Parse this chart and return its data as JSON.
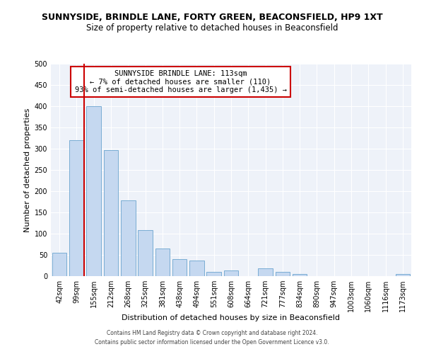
{
  "title": "SUNNYSIDE, BRINDLE LANE, FORTY GREEN, BEACONSFIELD, HP9 1XT",
  "subtitle": "Size of property relative to detached houses in Beaconsfield",
  "xlabel": "Distribution of detached houses by size in Beaconsfield",
  "ylabel": "Number of detached properties",
  "bar_labels": [
    "42sqm",
    "99sqm",
    "155sqm",
    "212sqm",
    "268sqm",
    "325sqm",
    "381sqm",
    "438sqm",
    "494sqm",
    "551sqm",
    "608sqm",
    "664sqm",
    "721sqm",
    "777sqm",
    "834sqm",
    "890sqm",
    "947sqm",
    "1003sqm",
    "1060sqm",
    "1116sqm",
    "1173sqm"
  ],
  "bar_values": [
    55,
    320,
    400,
    297,
    178,
    108,
    65,
    40,
    37,
    10,
    13,
    0,
    18,
    10,
    5,
    0,
    0,
    0,
    0,
    0,
    5
  ],
  "bar_color": "#c5d8f0",
  "bar_edge_color": "#7aadd4",
  "ylim": [
    0,
    500
  ],
  "yticks": [
    0,
    50,
    100,
    150,
    200,
    250,
    300,
    350,
    400,
    450,
    500
  ],
  "vline_color": "#cc0000",
  "annotation_title": "SUNNYSIDE BRINDLE LANE: 113sqm",
  "annotation_line1": "← 7% of detached houses are smaller (110)",
  "annotation_line2": "93% of semi-detached houses are larger (1,435) →",
  "annotation_box_color": "#cc0000",
  "footer_line1": "Contains HM Land Registry data © Crown copyright and database right 2024.",
  "footer_line2": "Contains public sector information licensed under the Open Government Licence v3.0.",
  "bg_color": "#eef2f9",
  "title_fontsize": 9,
  "subtitle_fontsize": 8.5,
  "xlabel_fontsize": 8,
  "ylabel_fontsize": 8,
  "tick_fontsize": 7,
  "annotation_fontsize": 7.5
}
